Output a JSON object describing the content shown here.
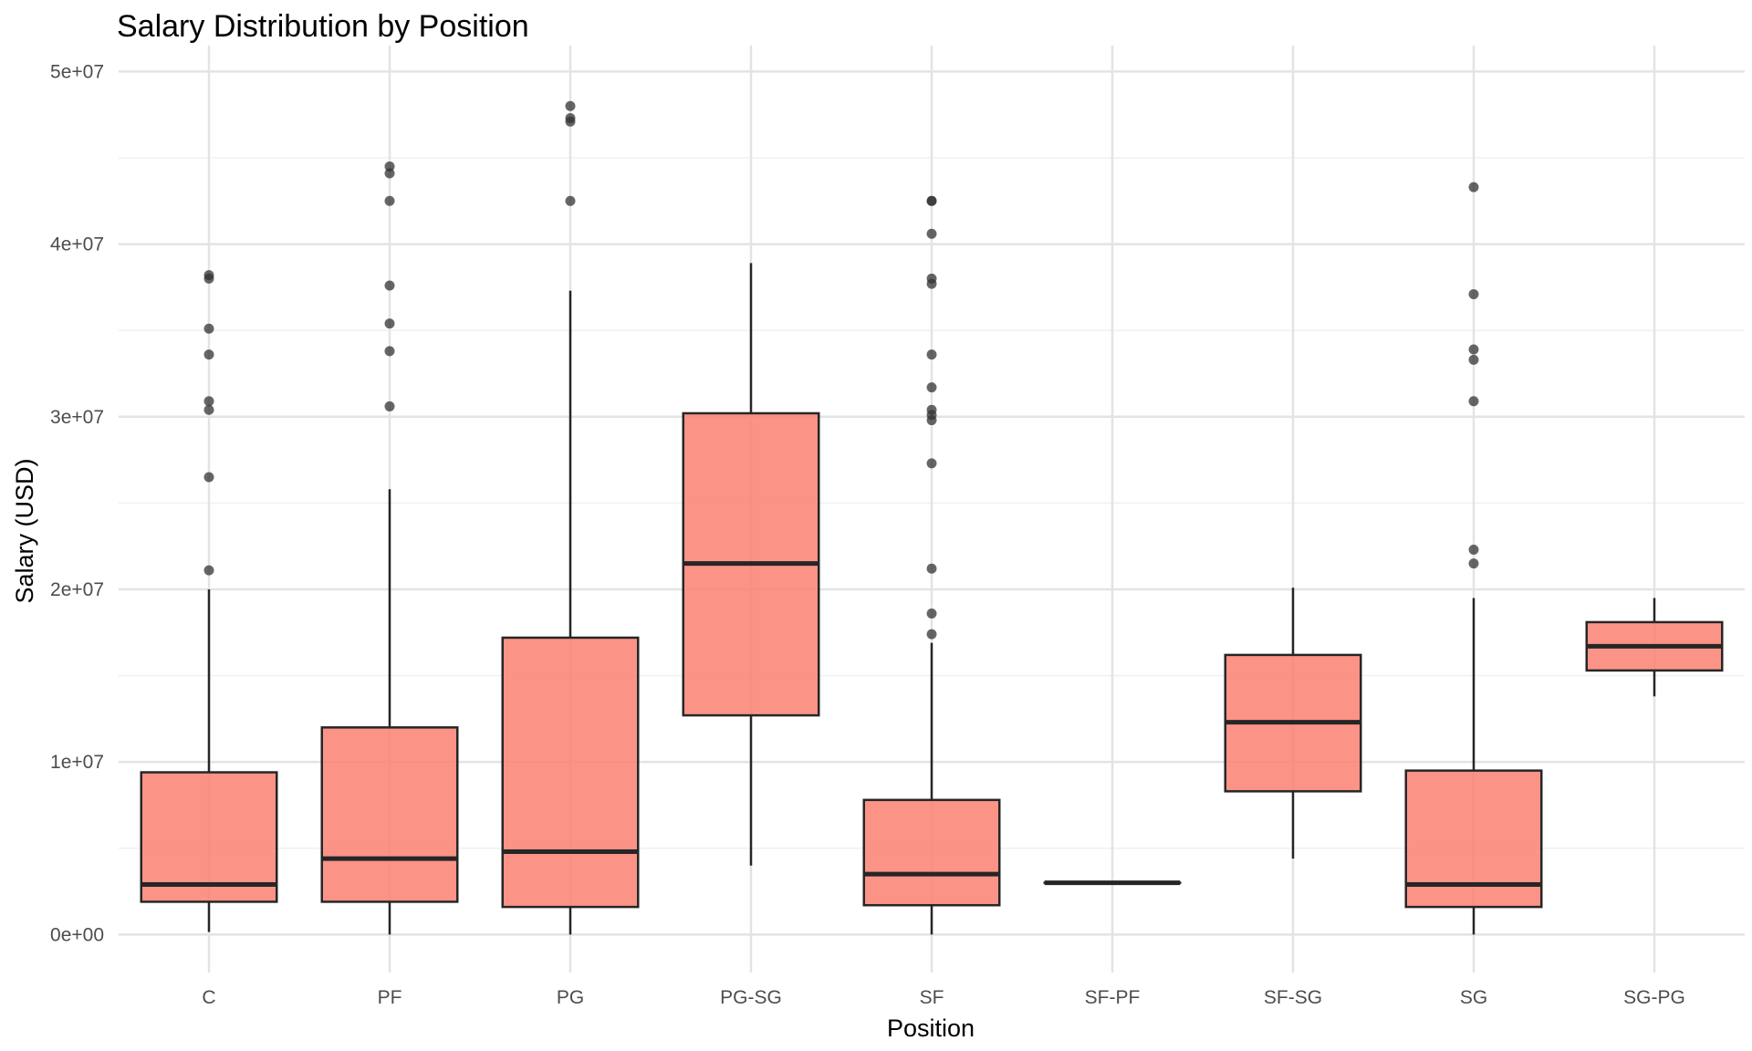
{
  "chart_data": {
    "type": "boxplot",
    "title": "Salary Distribution by Position",
    "xlabel": "Position",
    "ylabel": "Salary (USD)",
    "ylim": [
      -2200000,
      51500000
    ],
    "yticks": [
      0,
      10000000,
      20000000,
      30000000,
      40000000,
      50000000
    ],
    "ytick_labels": [
      "0e+00",
      "1e+07",
      "2e+07",
      "3e+07",
      "4e+07",
      "5e+07"
    ],
    "grid": true,
    "box_fill": "#fa8072",
    "box_opacity": 0.85,
    "line_color": "#262626",
    "outlier_color": "#333333",
    "categories": [
      "C",
      "PF",
      "PG",
      "PG-SG",
      "SF",
      "SF-PF",
      "SF-SG",
      "SG",
      "SG-PG"
    ],
    "boxes": [
      {
        "category": "C",
        "whisker_low": 150000,
        "q1": 1900000,
        "median": 2900000,
        "q3": 9400000,
        "whisker_high": 20000000,
        "outliers": [
          38200000,
          38000000,
          35100000,
          33600000,
          30900000,
          30400000,
          26500000,
          21100000
        ]
      },
      {
        "category": "PF",
        "whisker_low": 0,
        "q1": 1900000,
        "median": 4400000,
        "q3": 12000000,
        "whisker_high": 25800000,
        "outliers": [
          44500000,
          44100000,
          42500000,
          37600000,
          35400000,
          33800000,
          30600000
        ]
      },
      {
        "category": "PG",
        "whisker_low": 0,
        "q1": 1600000,
        "median": 4800000,
        "q3": 17200000,
        "whisker_high": 37300000,
        "outliers": [
          48000000,
          47300000,
          47100000,
          42500000
        ]
      },
      {
        "category": "PG-SG",
        "whisker_low": 4000000,
        "q1": 12700000,
        "median": 21500000,
        "q3": 30200000,
        "whisker_high": 38900000,
        "outliers": []
      },
      {
        "category": "SF",
        "whisker_low": 0,
        "q1": 1700000,
        "median": 3500000,
        "q3": 7800000,
        "whisker_high": 16900000,
        "outliers": [
          42500000,
          42500000,
          40600000,
          38000000,
          37700000,
          33600000,
          31700000,
          30400000,
          30100000,
          29800000,
          27300000,
          21200000,
          18600000,
          17400000
        ]
      },
      {
        "category": "SF-PF",
        "whisker_low": 3000000,
        "q1": 3000000,
        "median": 3000000,
        "q3": 3000000,
        "whisker_high": 3000000,
        "outliers": []
      },
      {
        "category": "SF-SG",
        "whisker_low": 4400000,
        "q1": 8300000,
        "median": 12300000,
        "q3": 16200000,
        "whisker_high": 20100000,
        "outliers": []
      },
      {
        "category": "SG",
        "whisker_low": 0,
        "q1": 1600000,
        "median": 2900000,
        "q3": 9500000,
        "whisker_high": 19500000,
        "outliers": [
          43300000,
          37100000,
          33900000,
          33300000,
          30900000,
          22300000,
          21500000
        ]
      },
      {
        "category": "SG-PG",
        "whisker_low": 13800000,
        "q1": 15300000,
        "median": 16700000,
        "q3": 18100000,
        "whisker_high": 19500000,
        "outliers": []
      }
    ]
  }
}
